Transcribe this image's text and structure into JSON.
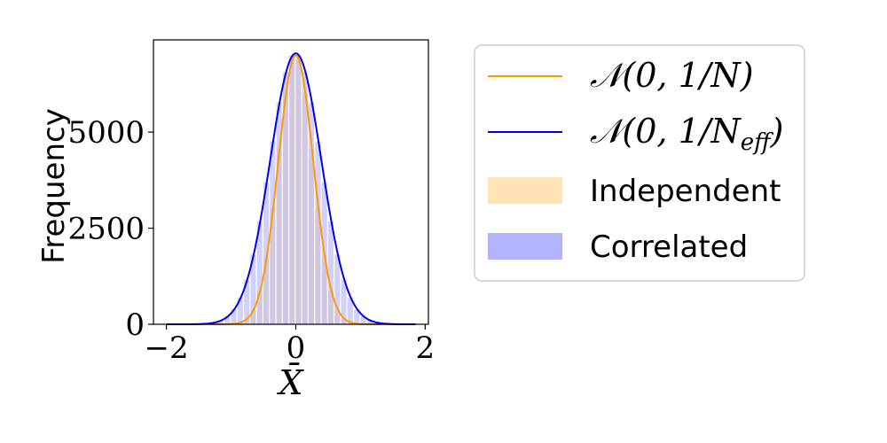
{
  "chart_data": {
    "type": "area",
    "xlabel": "X̄",
    "ylabel": "Frequency",
    "xlim": [
      -2.2,
      2.05
    ],
    "ylim": [
      0,
      7400
    ],
    "xticks": [
      -2,
      0,
      2
    ],
    "xtick_labels": [
      "−2",
      "0",
      "2"
    ],
    "yticks": [
      0,
      2500,
      5000
    ],
    "ytick_labels": [
      "0",
      "2500",
      "5000"
    ],
    "grid": false,
    "legend_position": "outside-right",
    "curves": [
      {
        "name": "𝒩(0, 1/N)",
        "mean": 0,
        "sd": 0.27,
        "peak": 7000,
        "x_range": [
          -2.0,
          1.85
        ],
        "color": "#ff9900"
      },
      {
        "name": "𝒩(0, 1/N_eff)",
        "mean": 0,
        "sd": 0.395,
        "peak": 7050,
        "x_range": [
          -2.0,
          1.85
        ],
        "color": "#0000ee"
      }
    ],
    "histograms": [
      {
        "name": "Independent",
        "bin_width": 0.1,
        "x_range": [
          -1.0,
          1.0
        ],
        "mean": 0,
        "sd": 0.27,
        "peak": 7000,
        "color": "#ffe4b5"
      },
      {
        "name": "Correlated",
        "bin_width": 0.1,
        "x_range": [
          -1.5,
          1.5
        ],
        "mean": 0,
        "sd": 0.395,
        "peak": 7050,
        "color": "#b3b3ff"
      }
    ]
  },
  "legend": {
    "items": [
      {
        "kind": "line",
        "label_main": "𝒩(0, 1/N)",
        "label_sub": "",
        "label_tail": "",
        "color": "#ff9900"
      },
      {
        "kind": "line",
        "label_main": "𝒩(0, 1/N",
        "label_sub": "eff",
        "label_tail": ")",
        "color": "#0000ee"
      },
      {
        "kind": "patch",
        "label_main": "Independent",
        "label_sub": "",
        "label_tail": "",
        "color": "#ffe4b5"
      },
      {
        "kind": "patch",
        "label_main": "Correlated",
        "label_sub": "",
        "label_tail": "",
        "color": "#b3b3ff"
      }
    ]
  }
}
